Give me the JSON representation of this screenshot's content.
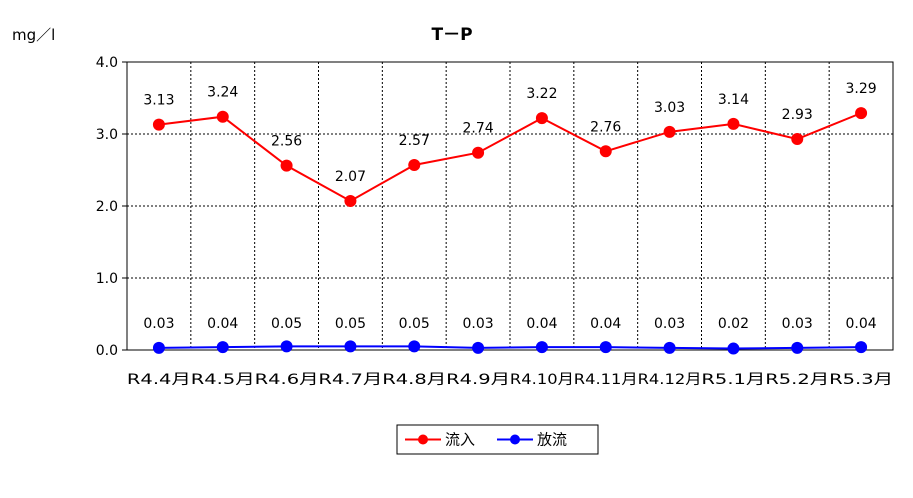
{
  "chart_data": {
    "type": "line",
    "title": "T－P",
    "ylabel": "mg／l",
    "xlabel": "",
    "ylim": [
      0,
      4.0
    ],
    "yticks": [
      "0.0",
      "1.0",
      "2.0",
      "3.0",
      "4.0"
    ],
    "grid": true,
    "legend_position": "bottom",
    "categories": [
      "R4.4月",
      "R4.5月",
      "R4.6月",
      "R4.7月",
      "R4.8月",
      "R4.9月",
      "R4.10月",
      "R4.11月",
      "R4.12月",
      "R5.1月",
      "R5.2月",
      "R5.3月"
    ],
    "series": [
      {
        "name": "流入",
        "color": "#ff0000",
        "values": [
          3.13,
          3.24,
          2.56,
          2.07,
          2.57,
          2.74,
          3.22,
          2.76,
          3.03,
          3.14,
          2.93,
          3.29
        ],
        "labels": [
          "3.13",
          "3.24",
          "2.56",
          "2.07",
          "2.57",
          "2.74",
          "3.22",
          "2.76",
          "3.03",
          "3.14",
          "2.93",
          "3.29"
        ]
      },
      {
        "name": "放流",
        "color": "#0000ff",
        "values": [
          0.03,
          0.04,
          0.05,
          0.05,
          0.05,
          0.03,
          0.04,
          0.04,
          0.03,
          0.02,
          0.03,
          0.04
        ],
        "labels": [
          "0.03",
          "0.04",
          "0.05",
          "0.05",
          "0.05",
          "0.03",
          "0.04",
          "0.04",
          "0.03",
          "0.02",
          "0.03",
          "0.04"
        ]
      }
    ]
  }
}
